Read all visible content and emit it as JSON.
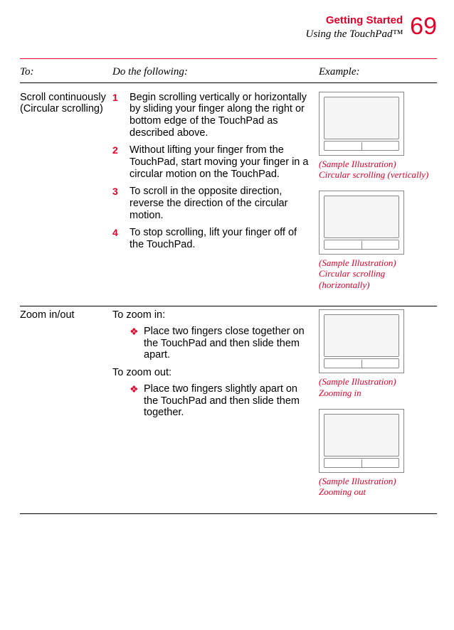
{
  "header": {
    "chapter_title": "Getting Started",
    "section_title": "Using the TouchPad™",
    "page_number": "69"
  },
  "table_headers": {
    "to": "To:",
    "do": "Do the following:",
    "example": "Example:"
  },
  "rows": [
    {
      "to": "Scroll continuously (Circular scrolling)",
      "steps": [
        {
          "num": "1",
          "text": "Begin scrolling vertically or horizontally by sliding your finger along the right or bottom edge of the TouchPad as described above."
        },
        {
          "num": "2",
          "text": "Without lifting your finger from the TouchPad, start moving your finger in a circular motion on the TouchPad."
        },
        {
          "num": "3",
          "text": "To scroll in the opposite direction, reverse the direction of the circular motion."
        },
        {
          "num": "4",
          "text": "To stop scrolling, lift your finger off of the TouchPad."
        }
      ],
      "illustrations": [
        {
          "caption_line1": "(Sample Illustration)",
          "caption_line2": "Circular scrolling (vertically)"
        },
        {
          "caption_line1": "(Sample Illustration)",
          "caption_line2": "Circular scrolling (horizontally)"
        }
      ]
    },
    {
      "to": "Zoom in/out",
      "sections": [
        {
          "intro": "To zoom in:",
          "bullets": [
            "Place two fingers close together on the TouchPad and then slide them apart."
          ]
        },
        {
          "intro": "To zoom out:",
          "bullets": [
            "Place two fingers slightly apart on the TouchPad and then slide them together."
          ]
        }
      ],
      "illustrations": [
        {
          "caption_line1": "(Sample Illustration)",
          "caption_line2": "Zooming in"
        },
        {
          "caption_line1": "(Sample Illustration)",
          "caption_line2": "Zooming out"
        }
      ]
    }
  ],
  "colors": {
    "accent": "#e40028",
    "text": "#000000",
    "bg": "#ffffff"
  }
}
